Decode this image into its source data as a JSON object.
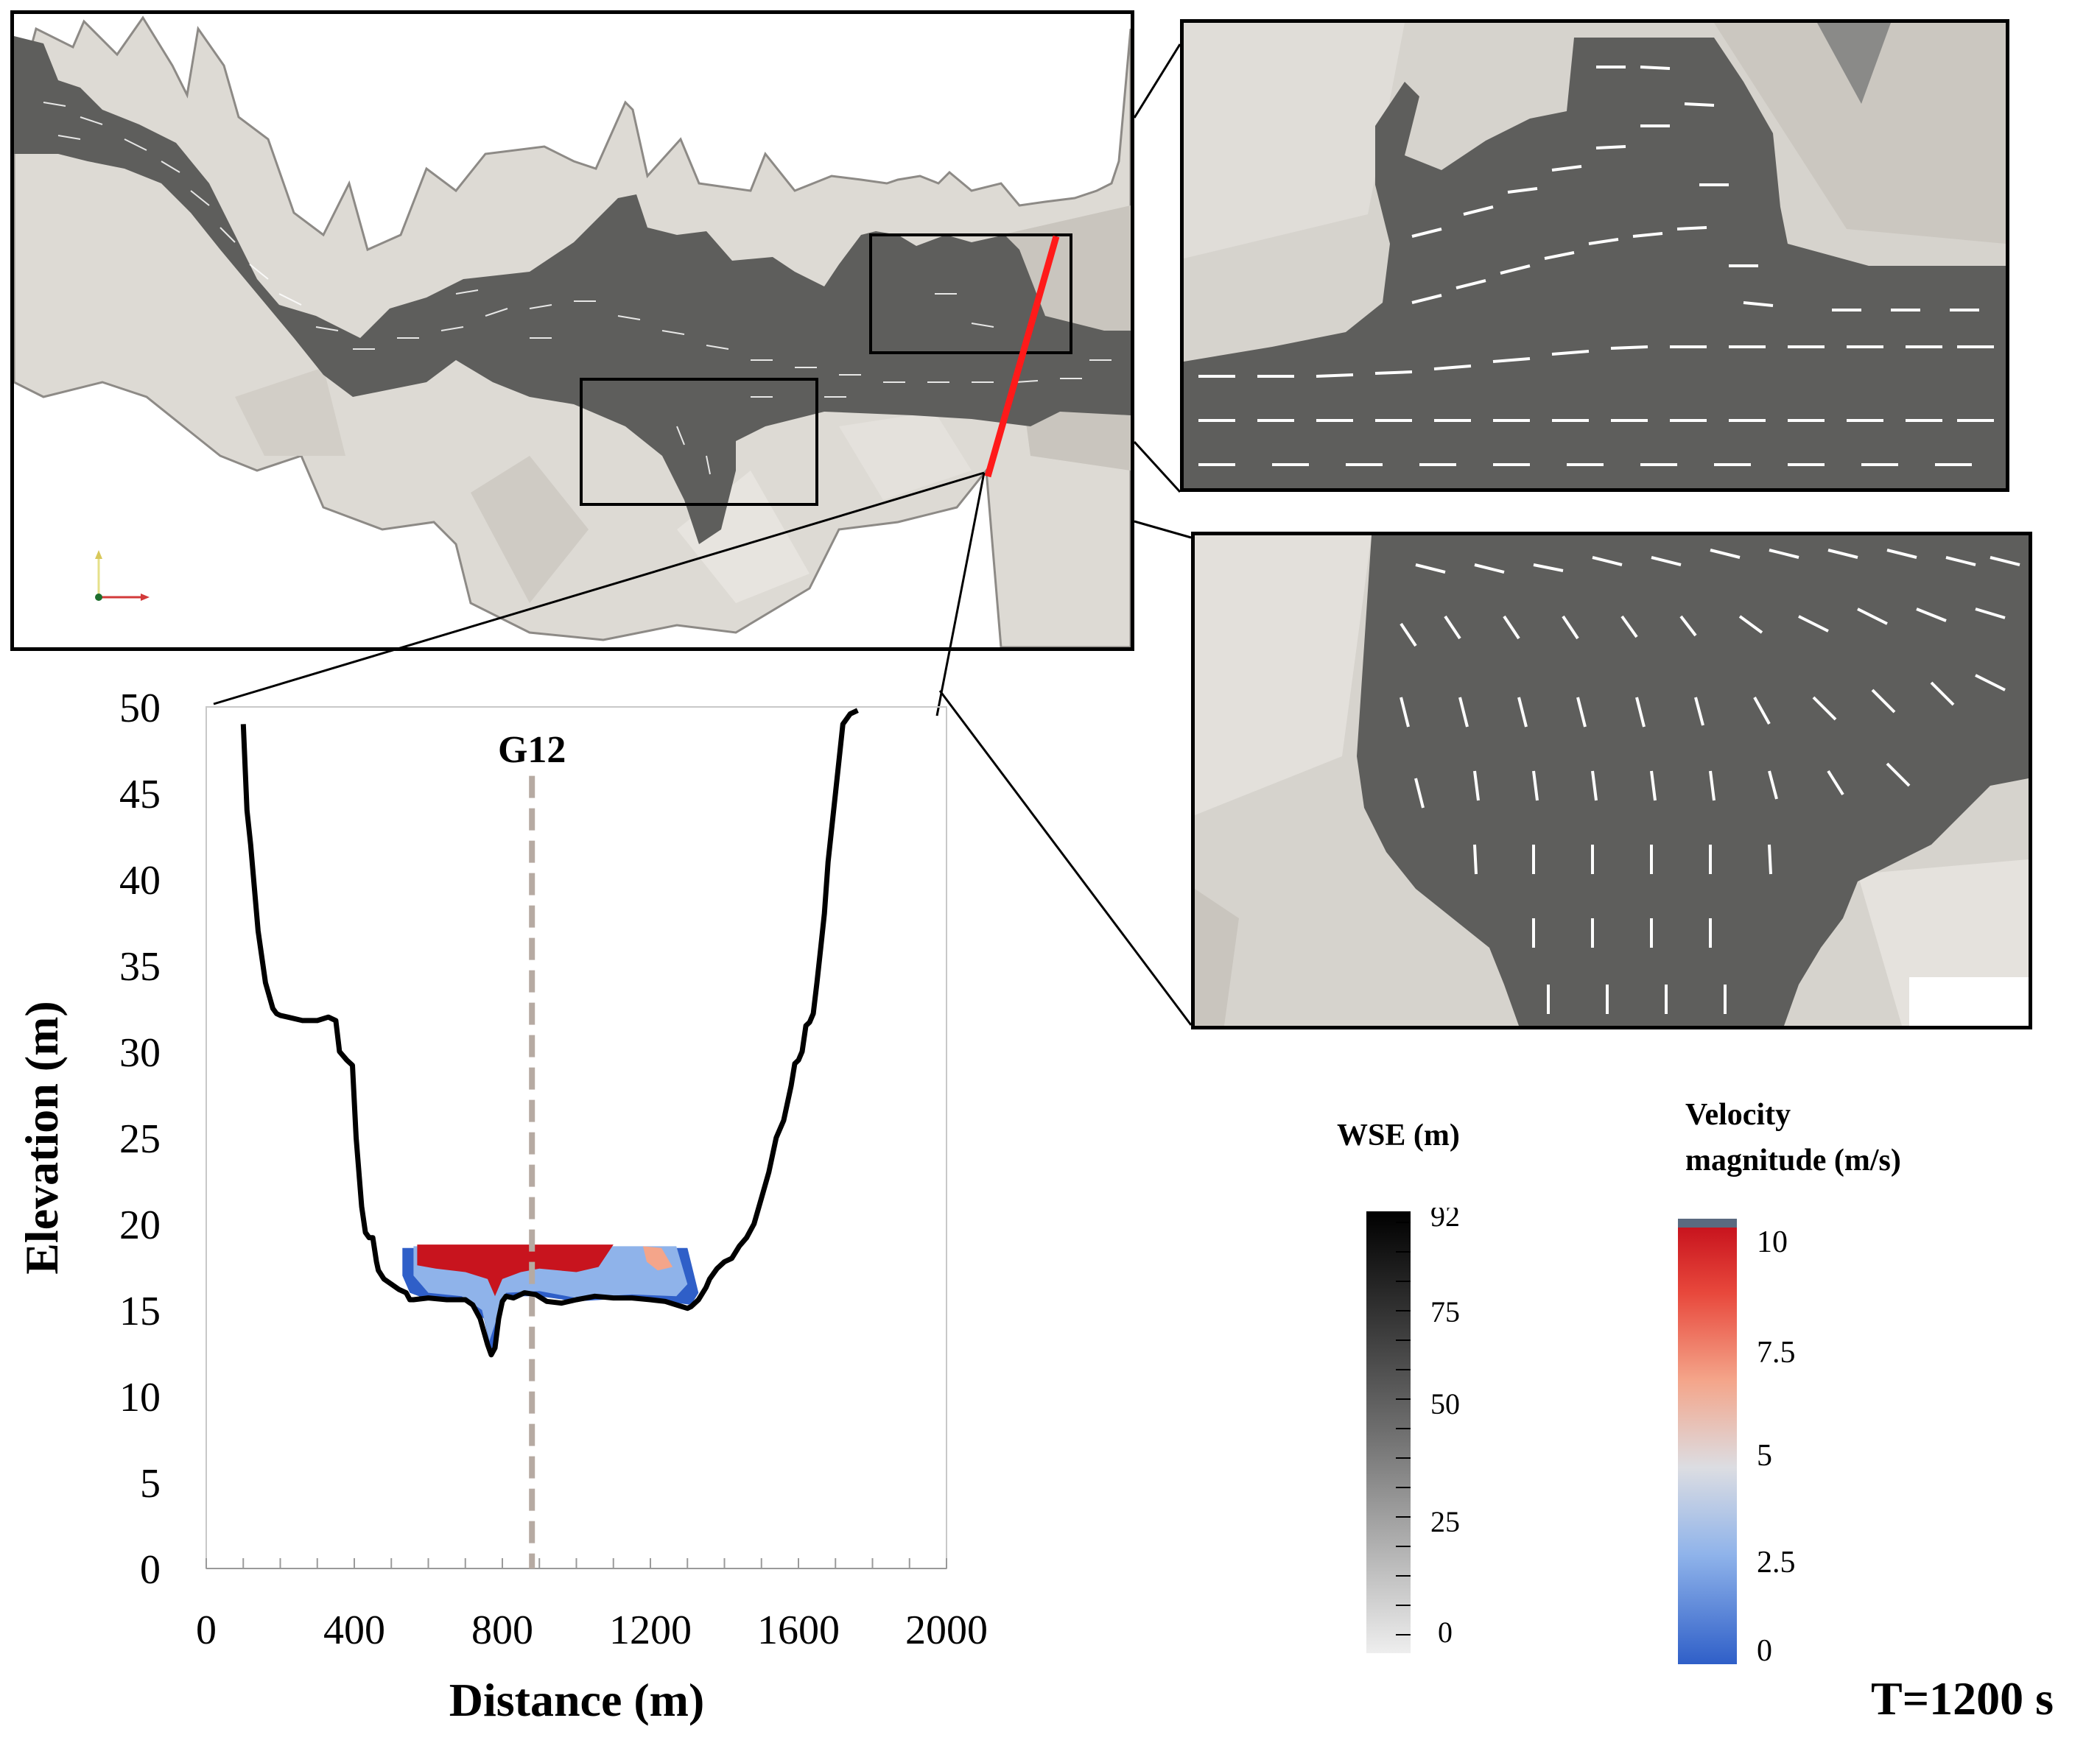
{
  "chart_data": {
    "type": "line",
    "xlabel": "Distance (m)",
    "ylabel": "Elevation (m)",
    "xlim": [
      0,
      2000
    ],
    "ylim": [
      0,
      50
    ],
    "xticks": [
      "0",
      "400",
      "800",
      "1200",
      "1600",
      "2000"
    ],
    "yticks": [
      "0",
      "5",
      "10",
      "15",
      "20",
      "25",
      "30",
      "35",
      "40",
      "45",
      "50"
    ],
    "grid": false,
    "annotation": "G12",
    "gauge_x": 880,
    "cross_section": {
      "x": [
        100,
        110,
        120,
        140,
        160,
        180,
        190,
        200,
        220,
        260,
        300,
        330,
        350,
        360,
        380,
        395,
        405,
        420,
        430,
        440,
        450,
        455,
        460,
        465,
        480,
        500,
        520,
        540,
        550,
        560,
        600,
        650,
        700,
        720,
        740,
        760,
        770,
        780,
        790,
        800,
        810,
        830,
        860,
        890,
        920,
        960,
        1000,
        1050,
        1100,
        1150,
        1200,
        1240,
        1270,
        1300,
        1310,
        1330,
        1350,
        1360,
        1380,
        1400,
        1420,
        1440,
        1460,
        1480,
        1500,
        1520,
        1540,
        1560,
        1580,
        1590,
        1600,
        1610,
        1620,
        1630,
        1640,
        1650,
        1660,
        1670,
        1680,
        1700,
        1720,
        1740,
        1760
      ],
      "y": [
        49,
        44,
        42,
        37,
        34,
        32.5,
        32.2,
        32.1,
        32,
        31.8,
        31.8,
        32,
        31.8,
        30,
        29.5,
        29.2,
        25,
        21,
        19.5,
        19.2,
        19.2,
        18.5,
        17.8,
        17.3,
        16.8,
        16.5,
        16.2,
        16,
        15.6,
        15.6,
        15.7,
        15.6,
        15.6,
        15.3,
        14.5,
        13,
        12.4,
        12.8,
        14.5,
        15.5,
        15.8,
        15.7,
        16,
        15.9,
        15.5,
        15.4,
        15.6,
        15.8,
        15.7,
        15.7,
        15.6,
        15.5,
        15.3,
        15.1,
        15.2,
        15.6,
        16.3,
        16.8,
        17.4,
        17.8,
        18,
        18.7,
        19.2,
        20,
        21.5,
        23,
        25,
        26,
        28,
        29.3,
        29.5,
        30,
        31.5,
        31.7,
        32.2,
        34,
        36,
        38,
        41,
        45,
        49,
        49.6,
        49.8
      ]
    },
    "wse_legend": {
      "title": "WSE (m)",
      "ticks": [
        "92",
        "75",
        "50",
        "25",
        "0"
      ]
    },
    "velocity_legend": {
      "title_line1": "Velocity",
      "title_line2": "magnitude (m/s)",
      "ticks": [
        "10",
        "7.5",
        "5",
        "2.5",
        "0"
      ]
    },
    "time_label": "T=1200 s",
    "colors": {
      "profile": "#000000",
      "section_line": "#ff1a1a",
      "gauge_line": "#b6aaa2",
      "water_fast": "#c8141e",
      "water_slow": "#2f5fc8",
      "channel": "#5e5e5c",
      "terrain": "#dcd9d3"
    }
  }
}
